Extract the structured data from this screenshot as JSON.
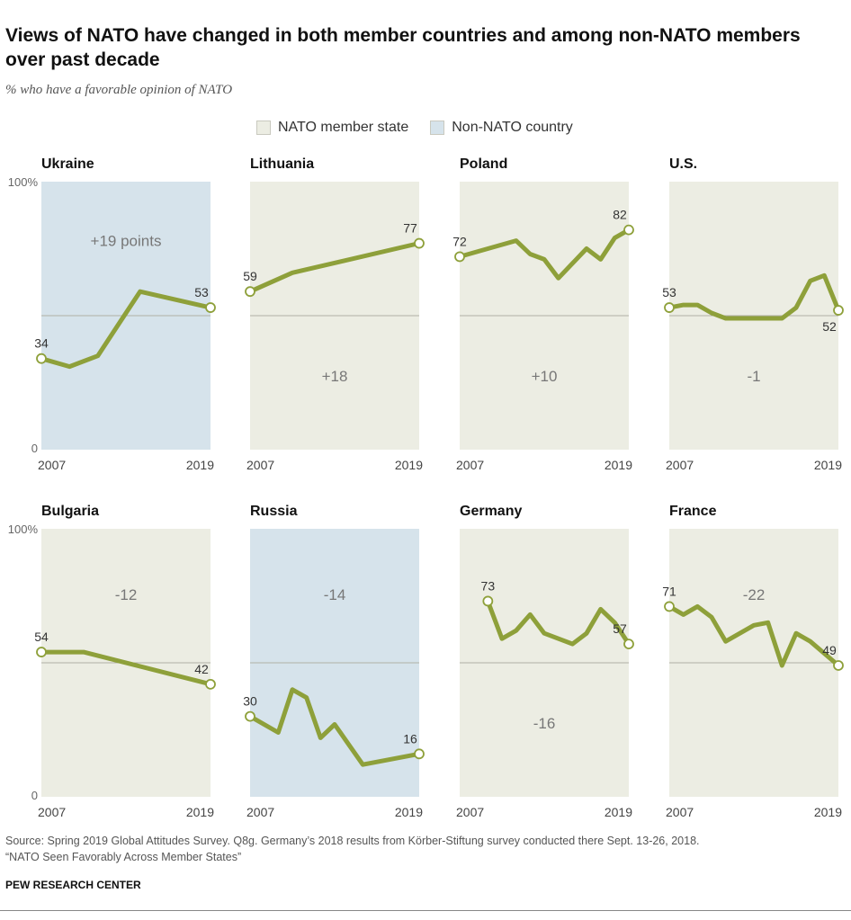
{
  "header": {
    "title": "Views of NATO have changed in both member countries and among non-NATO members over past decade",
    "subtitle": "% who have a favorable opinion of NATO"
  },
  "legend": {
    "items": [
      {
        "label": "NATO member state",
        "color": "#ecede3"
      },
      {
        "label": "Non-NATO country",
        "color": "#d6e3eb"
      }
    ]
  },
  "colors": {
    "line": "#8ea03a",
    "marker_fill": "#ffffff",
    "member_bg": "#ecede3",
    "non_member_bg": "#d6e3eb",
    "midline": "#b0b0a6",
    "text": "#333333",
    "change_text": "#777777"
  },
  "chart_data": [
    {
      "type": "line",
      "title": "Ukraine",
      "membership": "non-member",
      "x": [
        2007,
        2009,
        2011,
        2014,
        2017,
        2019
      ],
      "values": [
        34,
        31,
        35,
        59,
        null,
        53
      ],
      "start_label": "34",
      "end_label": "53",
      "change_label": "+19 points",
      "xlabel_start": "2007",
      "xlabel_end": "2019",
      "ylim": [
        0,
        100
      ],
      "y_axis_labels": [
        "100%",
        "0"
      ]
    },
    {
      "type": "line",
      "title": "Lithuania",
      "membership": "member",
      "x": [
        2007,
        2010,
        2019
      ],
      "values": [
        59,
        66,
        77
      ],
      "start_label": "59",
      "end_label": "77",
      "change_label": "+18",
      "xlabel_start": "2007",
      "xlabel_end": "2019",
      "ylim": [
        0,
        100
      ],
      "y_axis_labels": []
    },
    {
      "type": "line",
      "title": "Poland",
      "membership": "member",
      "x": [
        2007,
        2009,
        2011,
        2012,
        2013,
        2014,
        2016,
        2017,
        2018,
        2019
      ],
      "values": [
        72,
        75,
        78,
        73,
        71,
        64,
        75,
        71,
        79,
        82
      ],
      "start_label": "72",
      "end_label": "82",
      "change_label": "+10",
      "xlabel_start": "2007",
      "xlabel_end": "2019",
      "ylim": [
        0,
        100
      ],
      "y_axis_labels": []
    },
    {
      "type": "line",
      "title": "U.S.",
      "membership": "member",
      "x": [
        2007,
        2008,
        2009,
        2010,
        2011,
        2013,
        2015,
        2016,
        2017,
        2018,
        2019
      ],
      "values": [
        53,
        54,
        54,
        51,
        49,
        49,
        49,
        53,
        63,
        65,
        52
      ],
      "start_label": "53",
      "end_label": "52",
      "change_label": "-1",
      "xlabel_start": "2007",
      "xlabel_end": "2019",
      "ylim": [
        0,
        100
      ],
      "y_axis_labels": []
    },
    {
      "type": "line",
      "title": "Bulgaria",
      "membership": "member",
      "x": [
        2007,
        2010,
        2019
      ],
      "values": [
        54,
        54,
        42
      ],
      "start_label": "54",
      "end_label": "42",
      "change_label": "-12",
      "xlabel_start": "2007",
      "xlabel_end": "2019",
      "ylim": [
        0,
        100
      ],
      "y_axis_labels": [
        "100%",
        "0"
      ]
    },
    {
      "type": "line",
      "title": "Russia",
      "membership": "non-member",
      "x": [
        2007,
        2009,
        2010,
        2011,
        2012,
        2013,
        2015,
        2019
      ],
      "values": [
        30,
        24,
        40,
        37,
        22,
        27,
        12,
        16
      ],
      "start_label": "30",
      "end_label": "16",
      "change_label": "-14",
      "xlabel_start": "2007",
      "xlabel_end": "2019",
      "ylim": [
        0,
        100
      ],
      "y_axis_labels": []
    },
    {
      "type": "line",
      "title": "Germany",
      "membership": "member",
      "x": [
        2009,
        2010,
        2011,
        2012,
        2013,
        2015,
        2016,
        2017,
        2018,
        2019
      ],
      "values": [
        73,
        59,
        62,
        68,
        61,
        57,
        61,
        70,
        65,
        57
      ],
      "start_label": "73",
      "end_label": "57",
      "change_label": "-16",
      "xlabel_start": "2007",
      "xlabel_end": "2019",
      "ylim": [
        0,
        100
      ],
      "y_axis_labels": []
    },
    {
      "type": "line",
      "title": "France",
      "membership": "member",
      "x": [
        2007,
        2008,
        2009,
        2010,
        2011,
        2013,
        2014,
        2015,
        2016,
        2017,
        2019
      ],
      "values": [
        71,
        68,
        71,
        67,
        58,
        64,
        65,
        49,
        61,
        58,
        49
      ],
      "start_label": "71",
      "end_label": "49",
      "change_label": "-22",
      "xlabel_start": "2007",
      "xlabel_end": "2019",
      "ylim": [
        0,
        100
      ],
      "y_axis_labels": []
    }
  ],
  "footer": {
    "source": "Source: Spring 2019 Global Attitudes Survey. Q8g. Germany’s 2018 results from Körber-Stiftung survey conducted there Sept. 13-26, 2018.",
    "report": "“NATO Seen Favorably Across Member States”",
    "brand": "PEW RESEARCH CENTER"
  }
}
